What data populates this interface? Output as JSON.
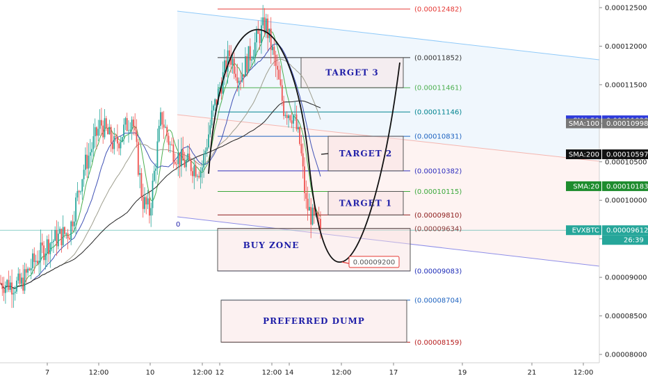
{
  "chart_data": {
    "type": "candlestick",
    "symbol": "EVXBTC",
    "y_axis": {
      "ylim": [
        7.75e-05,
        0.0001265
      ],
      "ticks": [
        "0.00012500",
        "0.00012000",
        "0.00011500",
        "0.00011000",
        "0.00010500",
        "0.00010000",
        "0.00009500",
        "0.00009000",
        "0.00008500",
        "0.00008000"
      ],
      "tick_values": [
        0.000125,
        0.00012,
        0.000115,
        0.00011,
        0.000105,
        0.0001,
        9.5e-05,
        9e-05,
        8.5e-05,
        8e-05
      ]
    },
    "x_axis": {
      "ticks": [
        "7",
        "12:00",
        "10",
        "12:00",
        "12",
        "12:00",
        "14",
        "12:00",
        "17",
        "19",
        "21",
        "12:00"
      ]
    },
    "fib_levels": [
      {
        "label": "(0.00012482)",
        "value": 0.00012482,
        "color": "#e53935"
      },
      {
        "label": "(0.00011852)",
        "value": 0.00011852,
        "color": "#333333"
      },
      {
        "label": "(0.00011461)",
        "value": 0.00011461,
        "color": "#4caf50"
      },
      {
        "label": "(0.00011146)",
        "value": 0.00011146,
        "color": "#00838f"
      },
      {
        "label": "(0.00010831)",
        "value": 0.00010831,
        "color": "#1e63c0"
      },
      {
        "label": "(0.00010382)",
        "value": 0.00010382,
        "color": "#2d2dbd"
      },
      {
        "label": "(0.00010115)",
        "value": 0.00010115,
        "color": "#3aa83a"
      },
      {
        "label": "(0.00009810)",
        "value": 9.81e-05,
        "color": "#8b1a1a"
      },
      {
        "label": "(0.00009634)",
        "value": 9.634e-05,
        "color": "#8a3a3a"
      },
      {
        "label": "(0.00009083)",
        "value": 9.083e-05,
        "color": "#1e2db8"
      },
      {
        "label": "(0.00008704)",
        "value": 8.704e-05,
        "color": "#1e63c0"
      },
      {
        "label": "(0.00008159)",
        "value": 8.159e-05,
        "color": "#b71c1c"
      }
    ],
    "fib_zero_label": "0",
    "zones": [
      {
        "label": "TARGET 3",
        "top": 0.00011852,
        "bottom": 0.00011461
      },
      {
        "label": "TARGET 2",
        "top": 0.00010831,
        "bottom": 0.00010382
      },
      {
        "label": "TARGET 1",
        "top": 0.00010115,
        "bottom": 9.81e-05
      },
      {
        "label": "BUY ZONE",
        "top": 9.634e-05,
        "bottom": 9.083e-05
      },
      {
        "label": "PREFERRED DUMP",
        "top": 8.704e-05,
        "bottom": 8.159e-05
      }
    ],
    "callout": {
      "label": "0.00009200",
      "value": 9.2e-05
    },
    "badges": [
      {
        "label": "SMA:50",
        "value": "0.00011038",
        "price": 0.00011038,
        "color": "#2e3bdc"
      },
      {
        "label": "SMA:100",
        "value": "0.00010998",
        "price": 0.00010998,
        "color": "#777777"
      },
      {
        "label": "SMA:200",
        "value": "0.00010597",
        "price": 0.00010597,
        "color": "#111111"
      },
      {
        "label": "SMA:20",
        "value": "0.00010183",
        "price": 0.00010183,
        "color": "#1e8c2e"
      },
      {
        "label": "EVXBTC",
        "value": "0.00009612",
        "price": 9.612e-05,
        "color": "#26a69a"
      }
    ],
    "countdown": "26:39",
    "last_price": 9.612e-05,
    "colors": {
      "up": "#26a69a",
      "down": "#ef5350",
      "sma20": "#4caf50",
      "sma50": "#3f51b5",
      "sma100": "#9e9e8e",
      "sma200": "#222222"
    }
  }
}
